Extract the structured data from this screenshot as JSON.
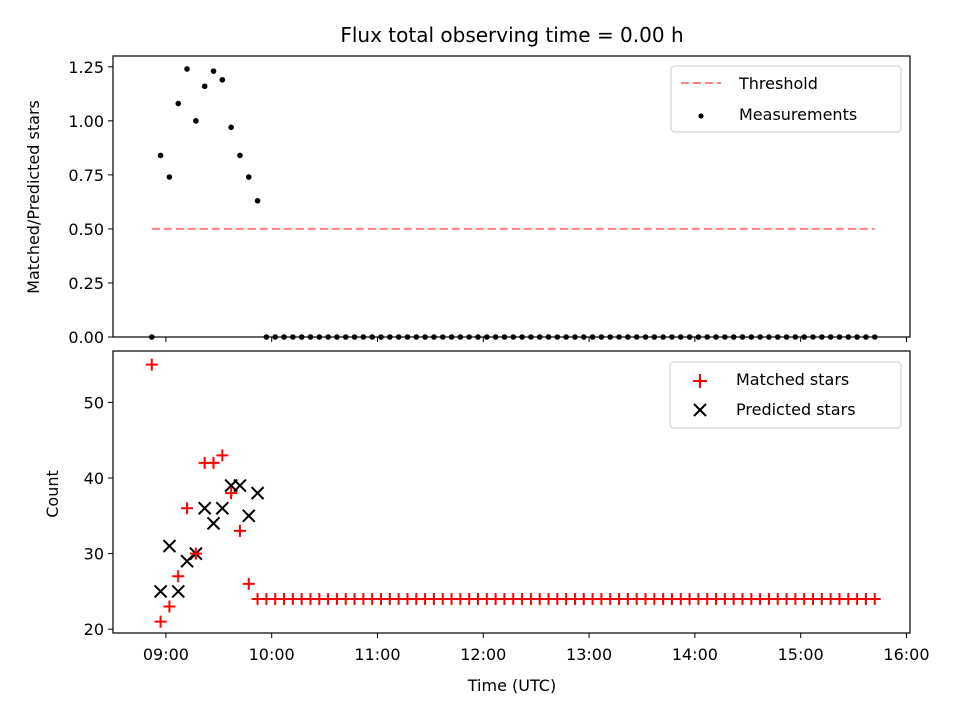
{
  "chart_data": [
    {
      "type": "scatter",
      "panel": "ratio",
      "title": "Flux total observing time = 0.00 h",
      "xlabel": "",
      "ylabel": "Matched/Predicted stars",
      "x_unit": "hours (UTC)",
      "xlim": [
        "08:30",
        "16:02"
      ],
      "ylim": [
        0,
        1.3
      ],
      "yticks": [
        "0.00",
        "0.25",
        "0.50",
        "0.75",
        "1.00",
        "1.25"
      ],
      "grid": false,
      "legend_position": "top-right",
      "legend": [
        "Threshold",
        "Measurements"
      ],
      "colors": {
        "threshold": "#ff7f7f",
        "measurements": "#000000"
      },
      "threshold": {
        "name": "Threshold",
        "y": 0.5,
        "x_start": "08:52",
        "x_end": "15:42"
      },
      "series": [
        {
          "name": "Measurements",
          "x": [
            "08:52",
            "08:57",
            "09:02",
            "09:07",
            "09:12",
            "09:17",
            "09:22",
            "09:27",
            "09:32",
            "09:37",
            "09:42",
            "09:47",
            "09:52",
            "09:57"
          ],
          "y": [
            0.0,
            0.84,
            0.74,
            1.08,
            1.24,
            1.0,
            1.16,
            1.23,
            1.19,
            0.97,
            0.84,
            0.74,
            0.63,
            0.0
          ]
        }
      ],
      "tail": {
        "x_start": "10:02",
        "x_end": "15:42",
        "step_minutes": 5,
        "y": 0.0
      }
    },
    {
      "type": "scatter",
      "panel": "counts",
      "xlabel": "Time (UTC)",
      "ylabel": "Count",
      "xlim": [
        "08:30",
        "16:02"
      ],
      "ylim": [
        19.5,
        56.8
      ],
      "xticks": [
        "09:00",
        "10:00",
        "11:00",
        "12:00",
        "13:00",
        "14:00",
        "15:00",
        "16:00"
      ],
      "yticks": [
        "20",
        "30",
        "40",
        "50"
      ],
      "grid": false,
      "legend_position": "top-right",
      "legend": [
        "Matched stars",
        "Predicted stars"
      ],
      "colors": {
        "matched": "#ff0000",
        "predicted": "#000000"
      },
      "series": [
        {
          "name": "Matched stars",
          "marker": "plus",
          "x": [
            "08:52",
            "08:57",
            "09:02",
            "09:07",
            "09:12",
            "09:17",
            "09:22",
            "09:27",
            "09:32",
            "09:37",
            "09:42",
            "09:47",
            "09:52"
          ],
          "y": [
            55,
            21,
            23,
            27,
            36,
            30,
            42,
            42,
            43,
            38,
            33,
            26,
            24
          ]
        },
        {
          "name": "Predicted stars",
          "marker": "x",
          "x": [
            "08:57",
            "09:02",
            "09:07",
            "09:12",
            "09:17",
            "09:22",
            "09:27",
            "09:32",
            "09:37",
            "09:42",
            "09:47",
            "09:52"
          ],
          "y": [
            25,
            31,
            25,
            29,
            30,
            36,
            34,
            36,
            39,
            39,
            35,
            38
          ]
        }
      ],
      "matched_tail": {
        "x_start": "09:57",
        "x_end": "15:42",
        "step_minutes": 5,
        "y": 24
      }
    }
  ]
}
